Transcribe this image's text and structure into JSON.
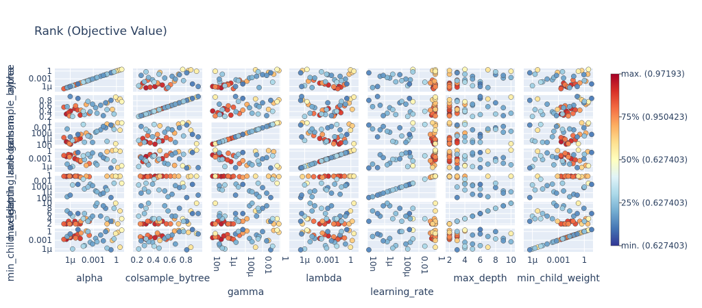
{
  "chart_data": {
    "type": "scatter",
    "title": "Rank (Objective Value)",
    "params": [
      "alpha",
      "colsample_bytree",
      "gamma",
      "lambda",
      "learning_rate",
      "max_depth",
      "min_child_weight"
    ],
    "y_ticks": [
      [
        "1μ",
        "0.001",
        "1"
      ],
      [
        "0.2",
        "0.4",
        "0.6",
        "0.8"
      ],
      [
        "10n",
        "1μ",
        "100μ",
        "0.01",
        "1"
      ],
      [
        "1μ",
        "0.001",
        "1"
      ],
      [
        "10n",
        "1μ",
        "100μ",
        "0.01",
        "1"
      ],
      [
        "2",
        "4",
        "6",
        "8",
        "10"
      ],
      [
        "1μ",
        "0.001",
        "1"
      ]
    ],
    "x_ticks": [
      [
        "1μ",
        "0.001",
        "1"
      ],
      [
        "0.2",
        "0.4",
        "0.6",
        "0.8"
      ],
      [
        "10n",
        "1μ",
        "100μ",
        "0.01",
        "1"
      ],
      [
        "1μ",
        "0.001",
        "1"
      ],
      [
        "10n",
        "1μ",
        "100μ",
        "0.01",
        "1"
      ],
      [
        "2",
        "4",
        "6",
        "8",
        "10"
      ],
      [
        "1μ",
        "0.001",
        "1"
      ]
    ],
    "colorbar": {
      "labels": [
        "max. (0.97193)",
        "75% (0.950423)",
        "50% (0.627403)",
        "25% (0.627403)",
        "min. (0.627403)"
      ],
      "colorscale": [
        "#313695",
        "#4575b4",
        "#74add1",
        "#abd9e9",
        "#e0f3f8",
        "#ffffbf",
        "#fee090",
        "#fdae61",
        "#f46d43",
        "#d73027",
        "#a50026"
      ]
    },
    "trials": [
      {
        "alpha": 3.2e-07,
        "colsample_bytree": 0.31,
        "gamma": 1.5e-07,
        "lambda": 0.008,
        "learning_rate": 0.45,
        "max_depth": 2,
        "min_child_weight": 0.0021,
        "rank": 0.96
      },
      {
        "alpha": 1.1e-06,
        "colsample_bytree": 0.42,
        "gamma": 1.5e-08,
        "lambda": 0.03,
        "learning_rate": 0.62,
        "max_depth": 2,
        "min_child_weight": 0.008,
        "rank": 0.94
      },
      {
        "alpha": 4e-06,
        "colsample_bytree": 0.51,
        "gamma": 3e-07,
        "lambda": 0.0012,
        "learning_rate": 0.88,
        "max_depth": 3,
        "min_child_weight": 0.03,
        "rank": 0.92
      },
      {
        "alpha": 2e-05,
        "colsample_bytree": 0.27,
        "gamma": 2e-06,
        "lambda": 9e-05,
        "learning_rate": 0.31,
        "max_depth": 2,
        "min_child_weight": 0.004,
        "rank": 0.9
      },
      {
        "alpha": 6e-07,
        "colsample_bytree": 0.36,
        "gamma": 6e-08,
        "lambda": 0.05,
        "learning_rate": 0.71,
        "max_depth": 3,
        "min_child_weight": 0.012,
        "rank": 0.88
      },
      {
        "alpha": 9e-06,
        "colsample_bytree": 0.46,
        "gamma": 8e-07,
        "lambda": 0.0004,
        "learning_rate": 0.95,
        "max_depth": 2,
        "min_child_weight": 0.09,
        "rank": 0.86
      },
      {
        "alpha": 1.5e-07,
        "colsample_bytree": 0.56,
        "gamma": 4e-06,
        "lambda": 0.02,
        "learning_rate": 0.52,
        "max_depth": 2,
        "min_child_weight": 0.002,
        "rank": 0.83
      },
      {
        "alpha": 0.0003,
        "colsample_bytree": 0.33,
        "gamma": 2e-05,
        "lambda": 1.5e-05,
        "learning_rate": 0.38,
        "max_depth": 3,
        "min_child_weight": 0.05,
        "rank": 0.8
      },
      {
        "alpha": 5e-06,
        "colsample_bytree": 0.61,
        "gamma": 1e-06,
        "lambda": 0.15,
        "learning_rate": 0.78,
        "max_depth": 2,
        "min_child_weight": 0.006,
        "rank": 0.78
      },
      {
        "alpha": 8e-07,
        "colsample_bytree": 0.24,
        "gamma": 3e-08,
        "lambda": 0.006,
        "learning_rate": 0.98,
        "max_depth": 2,
        "min_child_weight": 0.014,
        "rank": 0.76
      },
      {
        "alpha": 2.5e-05,
        "colsample_bytree": 0.45,
        "gamma": 5e-05,
        "lambda": 0.0002,
        "learning_rate": 0.22,
        "max_depth": 3,
        "min_child_weight": 0.3,
        "rank": 0.73
      },
      {
        "alpha": 0.00012,
        "colsample_bytree": 0.66,
        "gamma": 0.00015,
        "lambda": 3e-06,
        "learning_rate": 0.65,
        "max_depth": 4,
        "min_child_weight": 1.5,
        "rank": 0.7
      },
      {
        "alpha": 0.06,
        "colsample_bytree": 0.71,
        "gamma": 0.2,
        "lambda": 0.6,
        "learning_rate": 0.92,
        "max_depth": 2,
        "min_child_weight": 2.5,
        "rank": 0.66
      },
      {
        "alpha": 0.3,
        "colsample_bytree": 0.48,
        "gamma": 0.05,
        "lambda": 1.5,
        "learning_rate": 0.85,
        "max_depth": 3,
        "min_child_weight": 0.0008,
        "rank": 0.64
      },
      {
        "alpha": 1.5,
        "colsample_bytree": 0.83,
        "gamma": 0.8,
        "lambda": 5e-07,
        "learning_rate": 0.4,
        "max_depth": 2,
        "min_child_weight": 0.5,
        "rank": 0.62
      },
      {
        "alpha": 3.0,
        "colsample_bytree": 0.86,
        "gamma": 0.0015,
        "lambda": 0.9,
        "learning_rate": 0.99,
        "max_depth": 7,
        "min_child_weight": 4e-06,
        "rank": 0.58
      },
      {
        "alpha": 0.8,
        "colsample_bytree": 0.93,
        "gamma": 3e-08,
        "lambda": 2.5,
        "learning_rate": 0.95,
        "max_depth": 10,
        "min_child_weight": 0.2,
        "rank": 0.55
      },
      {
        "alpha": 5.0,
        "colsample_bytree": 0.76,
        "gamma": 0.5,
        "lambda": 2e-06,
        "learning_rate": 0.002,
        "max_depth": 4,
        "min_child_weight": 3.0,
        "rank": 0.52
      },
      {
        "alpha": 2e-06,
        "colsample_bytree": 0.22,
        "gamma": 4e-07,
        "lambda": 1e-06,
        "learning_rate": 0.0005,
        "max_depth": 5,
        "min_child_weight": 1e-06,
        "rank": 0.28
      },
      {
        "alpha": 7e-05,
        "colsample_bytree": 0.29,
        "gamma": 1e-07,
        "lambda": 0.0005,
        "learning_rate": 2e-05,
        "max_depth": 6,
        "min_child_weight": 1.5e-05,
        "rank": 0.24
      },
      {
        "alpha": 0.0004,
        "colsample_bytree": 0.39,
        "gamma": 8e-06,
        "lambda": 0.008,
        "learning_rate": 0.001,
        "max_depth": 4,
        "min_child_weight": 0.0002,
        "rank": 0.21
      },
      {
        "alpha": 0.002,
        "colsample_bytree": 0.54,
        "gamma": 0.0003,
        "lambda": 2e-05,
        "learning_rate": 4e-06,
        "max_depth": 9,
        "min_child_weight": 0.004,
        "rank": 0.19
      },
      {
        "alpha": 0.009,
        "colsample_bytree": 0.63,
        "gamma": 0.002,
        "lambda": 0.04,
        "learning_rate": 3e-07,
        "max_depth": 5,
        "min_child_weight": 0.06,
        "rank": 0.17
      },
      {
        "alpha": 0.04,
        "colsample_bytree": 0.72,
        "gamma": 0.01,
        "lambda": 0.001,
        "learning_rate": 6e-05,
        "max_depth": 8,
        "min_child_weight": 0.9,
        "rank": 0.15
      },
      {
        "alpha": 0.2,
        "colsample_bytree": 0.81,
        "gamma": 0.09,
        "lambda": 3e-07,
        "learning_rate": 1e-08,
        "max_depth": 3,
        "min_child_weight": 5e-07,
        "rank": 0.13
      },
      {
        "alpha": 1e-05,
        "colsample_bytree": 0.88,
        "gamma": 5e-05,
        "lambda": 0.3,
        "learning_rate": 0.0008,
        "max_depth": 6,
        "min_child_weight": 8.0,
        "rank": 0.11
      },
      {
        "alpha": 0.003,
        "colsample_bytree": 0.34,
        "gamma": 0.0006,
        "lambda": 5e-06,
        "learning_rate": 2e-06,
        "max_depth": 10,
        "min_child_weight": 0.0003,
        "rank": 0.22
      },
      {
        "alpha": 0.06,
        "colsample_bytree": 0.47,
        "gamma": 2e-07,
        "lambda": 0.0007,
        "learning_rate": 9e-06,
        "max_depth": 4,
        "min_child_weight": 2e-06,
        "rank": 0.26
      },
      {
        "alpha": 4e-07,
        "colsample_bytree": 0.58,
        "gamma": 0.004,
        "lambda": 9e-06,
        "learning_rate": 4e-08,
        "max_depth": 7,
        "min_child_weight": 0.02,
        "rank": 0.2
      },
      {
        "alpha": 0.0008,
        "colsample_bytree": 0.67,
        "gamma": 9e-08,
        "lambda": 0.2,
        "learning_rate": 0.0003,
        "max_depth": 5,
        "min_child_weight": 5e-05,
        "rank": 0.18
      },
      {
        "alpha": 0.02,
        "colsample_bytree": 0.25,
        "gamma": 0.03,
        "lambda": 0.003,
        "learning_rate": 7e-07,
        "max_depth": 9,
        "min_child_weight": 0.0006,
        "rank": 0.16
      },
      {
        "alpha": 1e-06,
        "colsample_bytree": 0.95,
        "gamma": 7e-06,
        "lambda": 4e-07,
        "learning_rate": 1.5e-07,
        "max_depth": 6,
        "min_child_weight": 0.15,
        "rank": 0.14
      },
      {
        "alpha": 5e-05,
        "colsample_bytree": 0.41,
        "gamma": 0.15,
        "lambda": 0.015,
        "learning_rate": 0.05,
        "max_depth": 4,
        "min_child_weight": 9e-06,
        "rank": 0.3
      },
      {
        "alpha": 0.5,
        "colsample_bytree": 0.31,
        "gamma": 0.003,
        "lambda": 0.00015,
        "learning_rate": 0.002,
        "max_depth": 8,
        "min_child_weight": 0.003,
        "rank": 0.27
      },
      {
        "alpha": 0.0002,
        "colsample_bytree": 0.77,
        "gamma": 1.5e-05,
        "lambda": 0.06,
        "learning_rate": 0.0001,
        "max_depth": 3,
        "min_child_weight": 1.0,
        "rank": 0.25
      }
    ]
  }
}
